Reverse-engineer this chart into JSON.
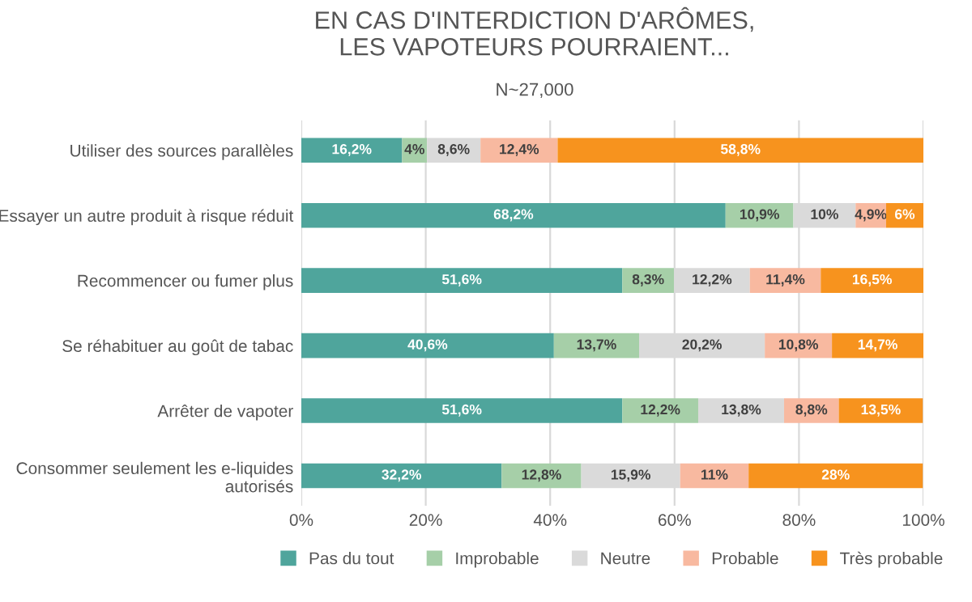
{
  "chart_data": {
    "type": "bar",
    "orientation": "horizontal",
    "stacked": true,
    "title": "EN CAS D'INTERDICTION D'ARÔMES,\nLES VAPOTEURS POURRAIENT...",
    "subtitle": "N~27,000",
    "categories": [
      "Utiliser des sources parallèles",
      "Essayer un autre produit à risque réduit",
      "Recommencer ou fumer plus",
      "Se réhabituer au goût de tabac",
      "Arrêter de vapoter",
      "Consommer seulement les e-liquides\nautorisés"
    ],
    "series": [
      {
        "name": "Pas du tout",
        "color": "#4fa59c",
        "values": [
          16.2,
          68.2,
          51.6,
          40.6,
          51.6,
          32.2
        ],
        "value_labels": [
          "16,2%",
          "68,2%",
          "51,6%",
          "40,6%",
          "51,6%",
          "32,2%"
        ]
      },
      {
        "name": "Improbable",
        "color": "#a6cfa8",
        "values": [
          4,
          10.9,
          8.3,
          13.7,
          12.2,
          12.8
        ],
        "value_labels": [
          "4%",
          "10,9%",
          "8,3%",
          "13,7%",
          "12,2%",
          "12,8%"
        ]
      },
      {
        "name": "Neutre",
        "color": "#dadada",
        "values": [
          8.6,
          10,
          12.2,
          20.2,
          13.8,
          15.9
        ],
        "value_labels": [
          "8,6%",
          "10%",
          "12,2%",
          "20,2%",
          "13,8%",
          "15,9%"
        ]
      },
      {
        "name": "Probable",
        "color": "#f8b9a0",
        "values": [
          12.4,
          4.9,
          11.4,
          10.8,
          8.8,
          11
        ],
        "value_labels": [
          "12,4%",
          "4,9%",
          "11,4%",
          "10,8%",
          "8,8%",
          "11%"
        ]
      },
      {
        "name": "Très probable",
        "color": "#f7931e",
        "values": [
          58.8,
          6,
          16.5,
          14.7,
          13.5,
          28
        ],
        "value_labels": [
          "58,8%",
          "6%",
          "16,5%",
          "14,7%",
          "13,5%",
          "28%"
        ]
      }
    ],
    "xlim": [
      0,
      100
    ],
    "xticks": [
      {
        "value": 0,
        "label": "0%"
      },
      {
        "value": 20,
        "label": "20%"
      },
      {
        "value": 40,
        "label": "40%"
      },
      {
        "value": 60,
        "label": "60%"
      },
      {
        "value": 80,
        "label": "80%"
      },
      {
        "value": 100,
        "label": "100%"
      }
    ],
    "grid": "x",
    "legend": "bottom"
  }
}
